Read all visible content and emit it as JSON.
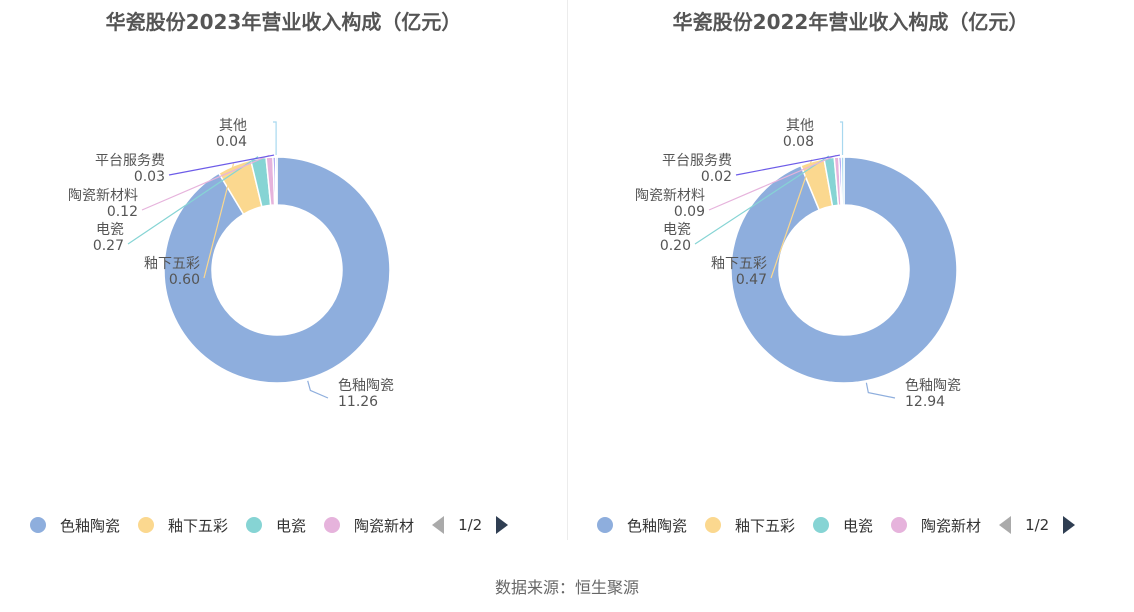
{
  "chart_data": [
    {
      "type": "pie",
      "title": "华瓷股份2023年营业收入构成（亿元）",
      "slices": [
        {
          "name": "色釉陶瓷",
          "value": 11.26,
          "value_label": "11.26",
          "color": "#8eaedd"
        },
        {
          "name": "釉下五彩",
          "value": 0.6,
          "value_label": "0.60",
          "color": "#fbd88f"
        },
        {
          "name": "电瓷",
          "value": 0.27,
          "value_label": "0.27",
          "color": "#86d4d4"
        },
        {
          "name": "陶瓷新材料",
          "value": 0.12,
          "value_label": "0.12",
          "color": "#e6b3dc"
        },
        {
          "name": "平台服务费",
          "value": 0.03,
          "value_label": "0.03",
          "color": "#6d5ce8"
        },
        {
          "name": "其他",
          "value": 0.04,
          "value_label": "0.04",
          "color": "#a8d8ef"
        }
      ],
      "legend": {
        "items": [
          "色釉陶瓷",
          "釉下五彩",
          "电瓷",
          "陶瓷新材"
        ],
        "colors": [
          "#8eaedd",
          "#fbd88f",
          "#86d4d4",
          "#e6b3dc"
        ],
        "page": "1/2",
        "placement": "bottom"
      }
    },
    {
      "type": "pie",
      "title": "华瓷股份2022年营业收入构成（亿元）",
      "slices": [
        {
          "name": "色釉陶瓷",
          "value": 12.94,
          "value_label": "12.94",
          "color": "#8eaedd"
        },
        {
          "name": "釉下五彩",
          "value": 0.47,
          "value_label": "0.47",
          "color": "#fbd88f"
        },
        {
          "name": "电瓷",
          "value": 0.2,
          "value_label": "0.20",
          "color": "#86d4d4"
        },
        {
          "name": "陶瓷新材料",
          "value": 0.09,
          "value_label": "0.09",
          "color": "#e6b3dc"
        },
        {
          "name": "平台服务费",
          "value": 0.02,
          "value_label": "0.02",
          "color": "#6d5ce8"
        },
        {
          "name": "其他",
          "value": 0.08,
          "value_label": "0.08",
          "color": "#a8d8ef"
        }
      ],
      "legend": {
        "items": [
          "色釉陶瓷",
          "釉下五彩",
          "电瓷",
          "陶瓷新材"
        ],
        "colors": [
          "#8eaedd",
          "#fbd88f",
          "#86d4d4",
          "#e6b3dc"
        ],
        "page": "1/2",
        "placement": "bottom"
      }
    }
  ],
  "footer": {
    "source": "数据来源：恒生聚源"
  }
}
